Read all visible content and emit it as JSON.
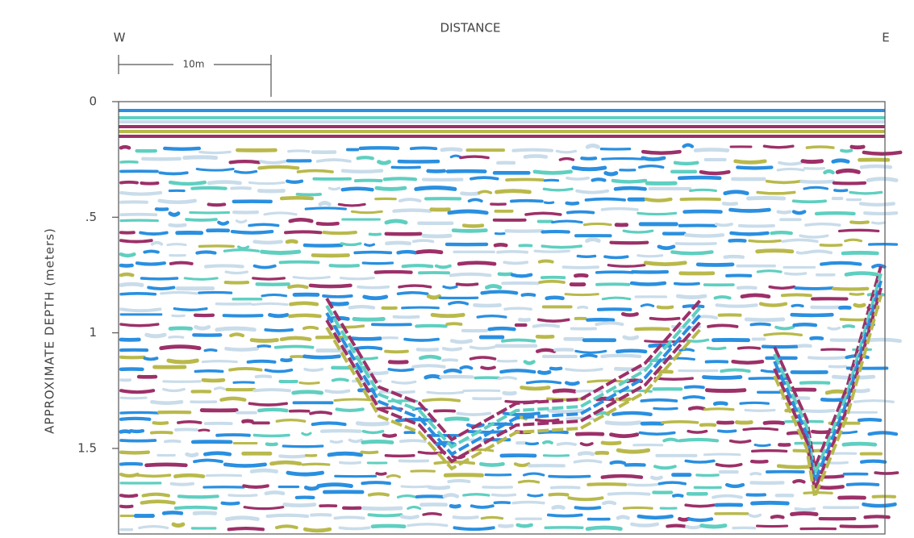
{
  "chart_data": {
    "type": "radargram",
    "title": "DISTANCE",
    "left_label": "W",
    "right_label": "E",
    "scale_label": "10m",
    "y_label": "APPROXIMATE DEPTH (meters)",
    "ylim": [
      0,
      1.87
    ],
    "yticks": [
      0,
      {
        "value": 0.5,
        "label": ".5"
      },
      1,
      1.5
    ]
  }
}
